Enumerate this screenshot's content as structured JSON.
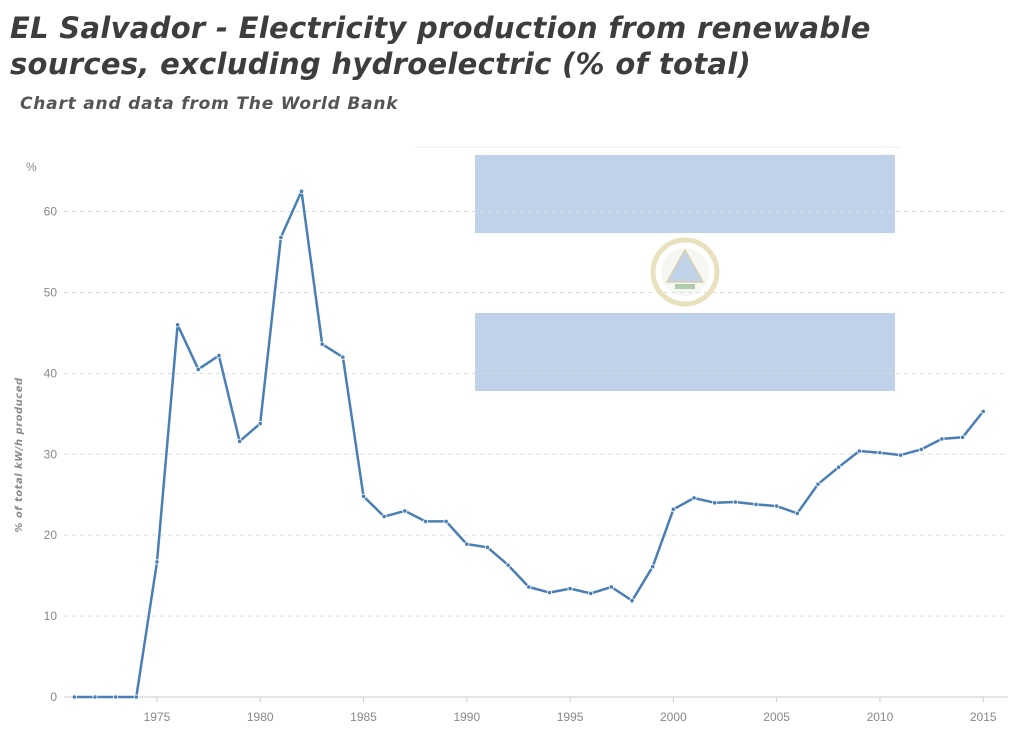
{
  "title": "EL Salvador - Electricity production from renewable sources, excluding hydroelectric (% of total)",
  "subtitle": "Chart and data from The World Bank",
  "colors": {
    "line": "#4a7fb5",
    "flag_blue": "#c0d1ea",
    "grid": "#dddddd",
    "axis_text": "#888888"
  },
  "chart_data": {
    "type": "line",
    "y_unit_label": "%",
    "ylabel": "% of total kW/h produced",
    "xlabel": "",
    "x_ticks": [
      1975,
      1980,
      1985,
      1990,
      1995,
      2000,
      2005,
      2010,
      2015
    ],
    "y_ticks": [
      0,
      10,
      20,
      30,
      40,
      50,
      60
    ],
    "ylim": [
      0,
      66
    ],
    "xlim": [
      1970.5,
      2016.2
    ],
    "grid": "horizontal dashed",
    "series": [
      {
        "x": [
          1971,
          1972,
          1973,
          1974,
          1975,
          1976,
          1977,
          1978,
          1979,
          1980,
          1981,
          1982,
          1983,
          1984,
          1985,
          1986,
          1987,
          1988,
          1989,
          1990,
          1991,
          1992,
          1993,
          1994,
          1995,
          1996,
          1997,
          1998,
          1999,
          2000,
          2001,
          2002,
          2003,
          2004,
          2005,
          2006,
          2007,
          2008,
          2009,
          2010,
          2011,
          2012,
          2013,
          2014,
          2015
        ],
        "values": [
          0,
          0,
          0,
          0,
          16.7,
          46.0,
          40.5,
          42.2,
          31.6,
          33.8,
          56.8,
          62.5,
          43.6,
          42.0,
          24.8,
          22.3,
          23.0,
          21.7,
          21.7,
          18.9,
          18.5,
          16.3,
          13.6,
          12.9,
          13.4,
          12.8,
          13.6,
          11.9,
          16.1,
          23.2,
          24.6,
          24.0,
          24.1,
          23.8,
          23.6,
          22.7,
          26.3,
          28.4,
          30.4,
          30.2,
          29.9,
          30.6,
          31.9,
          32.1,
          35.3
        ]
      }
    ],
    "background_image": "El Salvador flag"
  }
}
